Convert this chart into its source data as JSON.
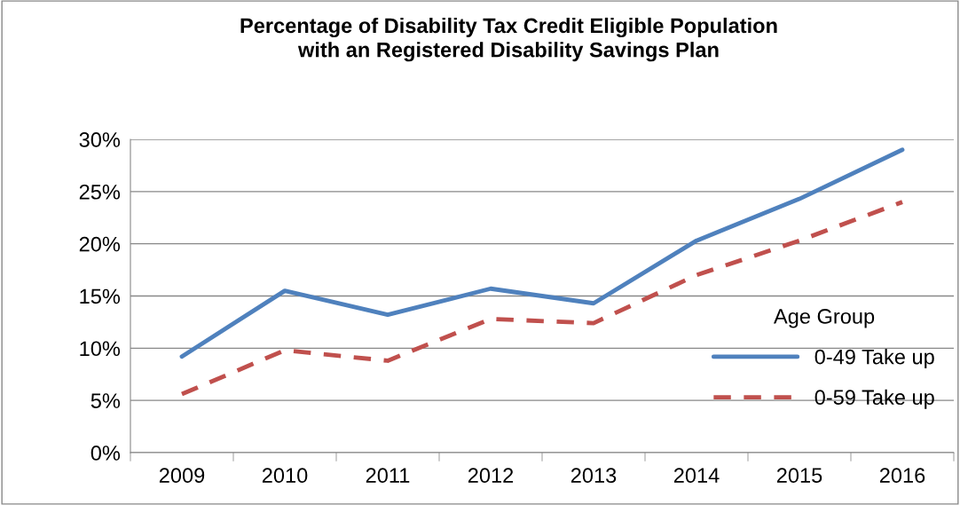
{
  "chart_data": {
    "type": "line",
    "title": "Percentage of Disability Tax Credit Eligible Population\nwith an Registered Disability Savings Plan",
    "categories": [
      "2009",
      "2010",
      "2011",
      "2012",
      "2013",
      "2014",
      "2015",
      "2016"
    ],
    "series": [
      {
        "name": "0-49 Take up",
        "color": "#4f81bd",
        "line_style": "solid",
        "values": [
          9.2,
          15.5,
          13.2,
          15.7,
          14.3,
          20.3,
          24.3,
          29.0
        ]
      },
      {
        "name": "0-59 Take up",
        "color": "#c0504d",
        "line_style": "dashed",
        "values": [
          5.6,
          9.8,
          8.8,
          12.8,
          12.4,
          17.0,
          20.3,
          24.0
        ]
      }
    ],
    "legend_title": "Age Group",
    "legend": "right",
    "grid": "y",
    "marker": "none",
    "ylim": [
      0,
      30
    ],
    "yticks": [
      {
        "value": 0,
        "label": "0%"
      },
      {
        "value": 5,
        "label": "5%"
      },
      {
        "value": 10,
        "label": "10%"
      },
      {
        "value": 15,
        "label": "15%"
      },
      {
        "value": 20,
        "label": "20%"
      },
      {
        "value": 25,
        "label": "25%"
      },
      {
        "value": 30,
        "label": "30%"
      }
    ]
  }
}
